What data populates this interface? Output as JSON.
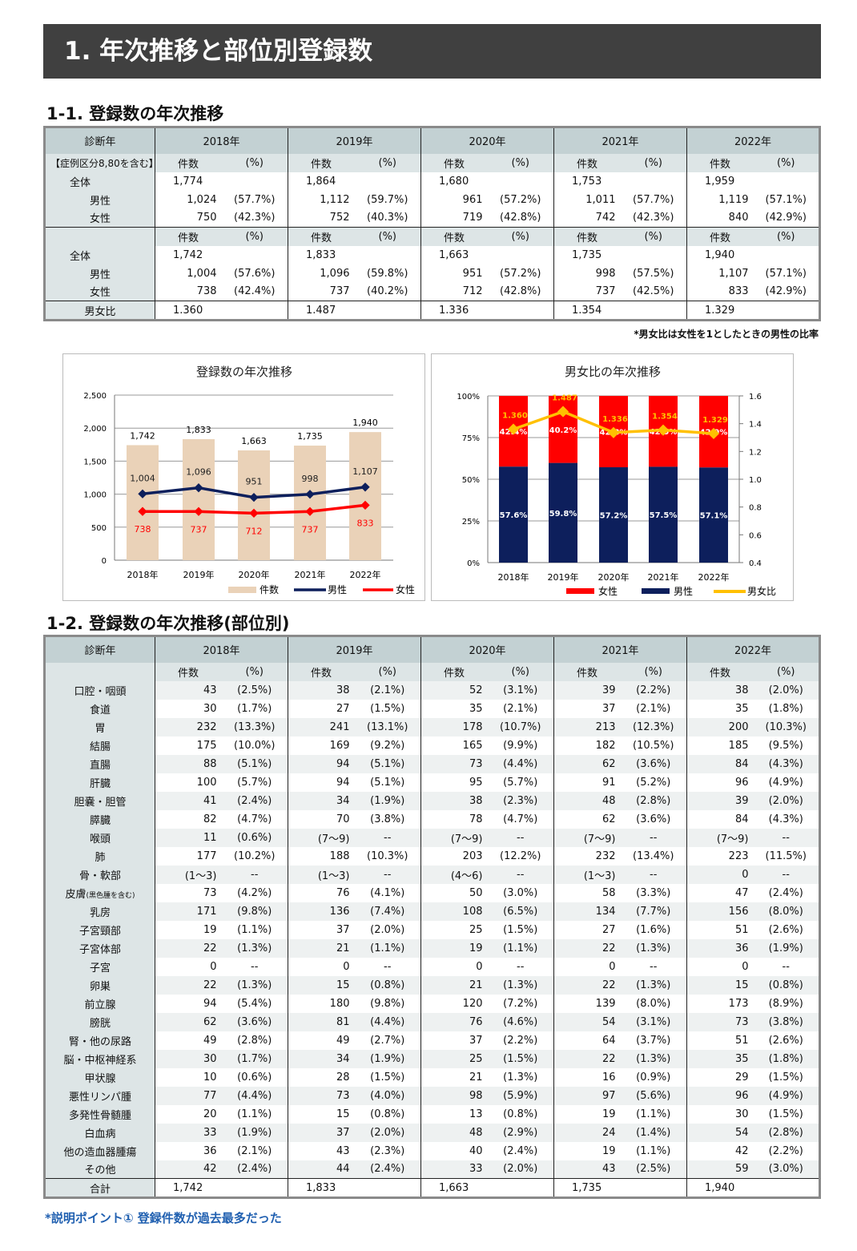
{
  "title": "1.  年次推移と部位別登録数",
  "section1": "1-1.  登録数の年次推移",
  "section2": "1-2. 登録数の年次推移(部位別)",
  "years": [
    "2018年",
    "2019年",
    "2020年",
    "2021年",
    "2022年"
  ],
  "diag_year": "診断年",
  "count_label": "件数",
  "pct_label": "(%)",
  "table1": {
    "incl_label": "【症例区分8,80を含む】",
    "group1": {
      "rows": [
        {
          "label": "全体",
          "cells": [
            [
              "1,774",
              ""
            ],
            [
              "1,864",
              ""
            ],
            [
              "1,680",
              ""
            ],
            [
              "1,753",
              ""
            ],
            [
              "1,959",
              ""
            ]
          ]
        },
        {
          "label": "男性",
          "cells": [
            [
              "1,024",
              "(57.7%)"
            ],
            [
              "1,112",
              "(59.7%)"
            ],
            [
              "961",
              "(57.2%)"
            ],
            [
              "1,011",
              "(57.7%)"
            ],
            [
              "1,119",
              "(57.1%)"
            ]
          ]
        },
        {
          "label": "女性",
          "cells": [
            [
              "750",
              "(42.3%)"
            ],
            [
              "752",
              "(40.3%)"
            ],
            [
              "719",
              "(42.8%)"
            ],
            [
              "742",
              "(42.3%)"
            ],
            [
              "840",
              "(42.9%)"
            ]
          ]
        }
      ]
    },
    "group2": {
      "rows": [
        {
          "label": "全体",
          "cells": [
            [
              "1,742",
              ""
            ],
            [
              "1,833",
              ""
            ],
            [
              "1,663",
              ""
            ],
            [
              "1,735",
              ""
            ],
            [
              "1,940",
              ""
            ]
          ]
        },
        {
          "label": "男性",
          "cells": [
            [
              "1,004",
              "(57.6%)"
            ],
            [
              "1,096",
              "(59.8%)"
            ],
            [
              "951",
              "(57.2%)"
            ],
            [
              "998",
              "(57.5%)"
            ],
            [
              "1,107",
              "(57.1%)"
            ]
          ]
        },
        {
          "label": "女性",
          "cells": [
            [
              "738",
              "(42.4%)"
            ],
            [
              "737",
              "(40.2%)"
            ],
            [
              "712",
              "(42.8%)"
            ],
            [
              "737",
              "(42.5%)"
            ],
            [
              "833",
              "(42.9%)"
            ]
          ]
        }
      ]
    },
    "ratio_label": "男女比",
    "ratios": [
      "1.360",
      "1.487",
      "1.336",
      "1.354",
      "1.329"
    ],
    "note": "*男女比は女性を1としたときの男性の比率"
  },
  "chart_data": [
    {
      "type": "bar+line",
      "title": "登録数の年次推移",
      "categories": [
        "2018年",
        "2019年",
        "2020年",
        "2021年",
        "2022年"
      ],
      "ylim": [
        0,
        2500
      ],
      "yticks": [
        "2,500",
        "2,000",
        "1,500",
        "1,000",
        "500",
        "0"
      ],
      "ytick_values": [
        2500,
        2000,
        1500,
        1000,
        500,
        0
      ],
      "series": [
        {
          "name": "件数",
          "kind": "bar",
          "color": "#ead2b8",
          "values": [
            1742,
            1833,
            1663,
            1735,
            1940
          ],
          "labels": [
            "1,742",
            "1,833",
            "1,663",
            "1,735",
            "1,940"
          ]
        },
        {
          "name": "男性",
          "kind": "line",
          "color": "#0d1f5c",
          "values": [
            1004,
            1096,
            951,
            998,
            1107
          ],
          "labels": [
            "1,004",
            "1,096",
            "951",
            "998",
            "1,107"
          ]
        },
        {
          "name": "女性",
          "kind": "line",
          "color": "#ff0000",
          "values": [
            738,
            737,
            712,
            737,
            833
          ],
          "labels": [
            "738",
            "737",
            "712",
            "737",
            "833"
          ]
        }
      ],
      "legend": "bottom-right"
    },
    {
      "type": "stacked-bar+line",
      "title": "男女比の年次推移",
      "categories": [
        "2018年",
        "2019年",
        "2020年",
        "2021年",
        "2022年"
      ],
      "ylim": [
        0,
        100
      ],
      "yticks": [
        "100%",
        "75%",
        "50%",
        "25%",
        "0%"
      ],
      "ytick_values": [
        100,
        75,
        50,
        25,
        0
      ],
      "y2lim": [
        0.4,
        1.6
      ],
      "y2ticks": [
        "1.6",
        "1.4",
        "1.2",
        "1.0",
        "0.8",
        "0.6",
        "0.4"
      ],
      "y2tick_values": [
        1.6,
        1.4,
        1.2,
        1.0,
        0.8,
        0.6,
        0.4
      ],
      "series": [
        {
          "name": "女性",
          "kind": "bar",
          "color": "#ff0000",
          "values": [
            42.4,
            40.2,
            42.8,
            42.5,
            42.9
          ],
          "labels": [
            "42.4%",
            "40.2%",
            "42.8%",
            "42.5%",
            "42.9%"
          ]
        },
        {
          "name": "男性",
          "kind": "bar",
          "color": "#0d1f5c",
          "values": [
            57.6,
            59.8,
            57.2,
            57.5,
            57.1
          ],
          "labels": [
            "57.6%",
            "59.8%",
            "57.2%",
            "57.5%",
            "57.1%"
          ]
        },
        {
          "name": "男女比",
          "kind": "line",
          "axis": "right",
          "color": "#ffc000",
          "values": [
            1.36,
            1.487,
            1.336,
            1.354,
            1.329
          ],
          "labels": [
            "1.360",
            "1.487",
            "1.336",
            "1.354",
            "1.329"
          ]
        }
      ],
      "legend": "bottom-right"
    }
  ],
  "table2": {
    "rows": [
      {
        "label": "口腔・咽頭",
        "cells": [
          [
            "43",
            "(2.5%)"
          ],
          [
            "38",
            "(2.1%)"
          ],
          [
            "52",
            "(3.1%)"
          ],
          [
            "39",
            "(2.2%)"
          ],
          [
            "38",
            "(2.0%)"
          ]
        ]
      },
      {
        "label": "食道",
        "cells": [
          [
            "30",
            "(1.7%)"
          ],
          [
            "27",
            "(1.5%)"
          ],
          [
            "35",
            "(2.1%)"
          ],
          [
            "37",
            "(2.1%)"
          ],
          [
            "35",
            "(1.8%)"
          ]
        ]
      },
      {
        "label": "胃",
        "cells": [
          [
            "232",
            "(13.3%)"
          ],
          [
            "241",
            "(13.1%)"
          ],
          [
            "178",
            "(10.7%)"
          ],
          [
            "213",
            "(12.3%)"
          ],
          [
            "200",
            "(10.3%)"
          ]
        ]
      },
      {
        "label": "結腸",
        "cells": [
          [
            "175",
            "(10.0%)"
          ],
          [
            "169",
            "(9.2%)"
          ],
          [
            "165",
            "(9.9%)"
          ],
          [
            "182",
            "(10.5%)"
          ],
          [
            "185",
            "(9.5%)"
          ]
        ]
      },
      {
        "label": "直腸",
        "cells": [
          [
            "88",
            "(5.1%)"
          ],
          [
            "94",
            "(5.1%)"
          ],
          [
            "73",
            "(4.4%)"
          ],
          [
            "62",
            "(3.6%)"
          ],
          [
            "84",
            "(4.3%)"
          ]
        ]
      },
      {
        "label": "肝臓",
        "cells": [
          [
            "100",
            "(5.7%)"
          ],
          [
            "94",
            "(5.1%)"
          ],
          [
            "95",
            "(5.7%)"
          ],
          [
            "91",
            "(5.2%)"
          ],
          [
            "96",
            "(4.9%)"
          ]
        ]
      },
      {
        "label": "胆嚢・胆管",
        "cells": [
          [
            "41",
            "(2.4%)"
          ],
          [
            "34",
            "(1.9%)"
          ],
          [
            "38",
            "(2.3%)"
          ],
          [
            "48",
            "(2.8%)"
          ],
          [
            "39",
            "(2.0%)"
          ]
        ]
      },
      {
        "label": "膵臓",
        "cells": [
          [
            "82",
            "(4.7%)"
          ],
          [
            "70",
            "(3.8%)"
          ],
          [
            "78",
            "(4.7%)"
          ],
          [
            "62",
            "(3.6%)"
          ],
          [
            "84",
            "(4.3%)"
          ]
        ]
      },
      {
        "label": "喉頭",
        "cells": [
          [
            "11",
            "(0.6%)"
          ],
          [
            "(7〜9)",
            "--"
          ],
          [
            "(7〜9)",
            "--"
          ],
          [
            "(7〜9)",
            "--"
          ],
          [
            "(7〜9)",
            "--"
          ]
        ]
      },
      {
        "label": "肺",
        "cells": [
          [
            "177",
            "(10.2%)"
          ],
          [
            "188",
            "(10.3%)"
          ],
          [
            "203",
            "(12.2%)"
          ],
          [
            "232",
            "(13.4%)"
          ],
          [
            "223",
            "(11.5%)"
          ]
        ]
      },
      {
        "label": "骨・軟部",
        "cells": [
          [
            "(1〜3)",
            "--"
          ],
          [
            "(1〜3)",
            "--"
          ],
          [
            "(4〜6)",
            "--"
          ],
          [
            "(1〜3)",
            "--"
          ],
          [
            "0",
            "--"
          ]
        ]
      },
      {
        "label": "皮膚",
        "label_note": "(黒色腫を含む)",
        "cells": [
          [
            "73",
            "(4.2%)"
          ],
          [
            "76",
            "(4.1%)"
          ],
          [
            "50",
            "(3.0%)"
          ],
          [
            "58",
            "(3.3%)"
          ],
          [
            "47",
            "(2.4%)"
          ]
        ]
      },
      {
        "label": "乳房",
        "cells": [
          [
            "171",
            "(9.8%)"
          ],
          [
            "136",
            "(7.4%)"
          ],
          [
            "108",
            "(6.5%)"
          ],
          [
            "134",
            "(7.7%)"
          ],
          [
            "156",
            "(8.0%)"
          ]
        ]
      },
      {
        "label": "子宮頸部",
        "cells": [
          [
            "19",
            "(1.1%)"
          ],
          [
            "37",
            "(2.0%)"
          ],
          [
            "25",
            "(1.5%)"
          ],
          [
            "27",
            "(1.6%)"
          ],
          [
            "51",
            "(2.6%)"
          ]
        ]
      },
      {
        "label": "子宮体部",
        "cells": [
          [
            "22",
            "(1.3%)"
          ],
          [
            "21",
            "(1.1%)"
          ],
          [
            "19",
            "(1.1%)"
          ],
          [
            "22",
            "(1.3%)"
          ],
          [
            "36",
            "(1.9%)"
          ]
        ]
      },
      {
        "label": "子宮",
        "cells": [
          [
            "0",
            "--"
          ],
          [
            "0",
            "--"
          ],
          [
            "0",
            "--"
          ],
          [
            "0",
            "--"
          ],
          [
            "0",
            "--"
          ]
        ]
      },
      {
        "label": "卵巣",
        "cells": [
          [
            "22",
            "(1.3%)"
          ],
          [
            "15",
            "(0.8%)"
          ],
          [
            "21",
            "(1.3%)"
          ],
          [
            "22",
            "(1.3%)"
          ],
          [
            "15",
            "(0.8%)"
          ]
        ]
      },
      {
        "label": "前立腺",
        "cells": [
          [
            "94",
            "(5.4%)"
          ],
          [
            "180",
            "(9.8%)"
          ],
          [
            "120",
            "(7.2%)"
          ],
          [
            "139",
            "(8.0%)"
          ],
          [
            "173",
            "(8.9%)"
          ]
        ]
      },
      {
        "label": "膀胱",
        "cells": [
          [
            "62",
            "(3.6%)"
          ],
          [
            "81",
            "(4.4%)"
          ],
          [
            "76",
            "(4.6%)"
          ],
          [
            "54",
            "(3.1%)"
          ],
          [
            "73",
            "(3.8%)"
          ]
        ]
      },
      {
        "label": "腎・他の尿路",
        "cells": [
          [
            "49",
            "(2.8%)"
          ],
          [
            "49",
            "(2.7%)"
          ],
          [
            "37",
            "(2.2%)"
          ],
          [
            "64",
            "(3.7%)"
          ],
          [
            "51",
            "(2.6%)"
          ]
        ]
      },
      {
        "label": "脳・中枢神経系",
        "cells": [
          [
            "30",
            "(1.7%)"
          ],
          [
            "34",
            "(1.9%)"
          ],
          [
            "25",
            "(1.5%)"
          ],
          [
            "22",
            "(1.3%)"
          ],
          [
            "35",
            "(1.8%)"
          ]
        ]
      },
      {
        "label": "甲状腺",
        "cells": [
          [
            "10",
            "(0.6%)"
          ],
          [
            "28",
            "(1.5%)"
          ],
          [
            "21",
            "(1.3%)"
          ],
          [
            "16",
            "(0.9%)"
          ],
          [
            "29",
            "(1.5%)"
          ]
        ]
      },
      {
        "label": "悪性リンパ腫",
        "cells": [
          [
            "77",
            "(4.4%)"
          ],
          [
            "73",
            "(4.0%)"
          ],
          [
            "98",
            "(5.9%)"
          ],
          [
            "97",
            "(5.6%)"
          ],
          [
            "96",
            "(4.9%)"
          ]
        ]
      },
      {
        "label": "多発性骨髄腫",
        "cells": [
          [
            "20",
            "(1.1%)"
          ],
          [
            "15",
            "(0.8%)"
          ],
          [
            "13",
            "(0.8%)"
          ],
          [
            "19",
            "(1.1%)"
          ],
          [
            "30",
            "(1.5%)"
          ]
        ]
      },
      {
        "label": "白血病",
        "cells": [
          [
            "33",
            "(1.9%)"
          ],
          [
            "37",
            "(2.0%)"
          ],
          [
            "48",
            "(2.9%)"
          ],
          [
            "24",
            "(1.4%)"
          ],
          [
            "54",
            "(2.8%)"
          ]
        ]
      },
      {
        "label": "他の造血器腫瘍",
        "cells": [
          [
            "36",
            "(2.1%)"
          ],
          [
            "43",
            "(2.3%)"
          ],
          [
            "40",
            "(2.4%)"
          ],
          [
            "19",
            "(1.1%)"
          ],
          [
            "42",
            "(2.2%)"
          ]
        ]
      },
      {
        "label": "その他",
        "cells": [
          [
            "42",
            "(2.4%)"
          ],
          [
            "44",
            "(2.4%)"
          ],
          [
            "33",
            "(2.0%)"
          ],
          [
            "43",
            "(2.5%)"
          ],
          [
            "59",
            "(3.0%)"
          ]
        ]
      }
    ],
    "total_label": "合計",
    "totals": [
      "1,742",
      "1,833",
      "1,663",
      "1,735",
      "1,940"
    ]
  },
  "footnote": "*説明ポイント①  登録件数が過去最多だった"
}
